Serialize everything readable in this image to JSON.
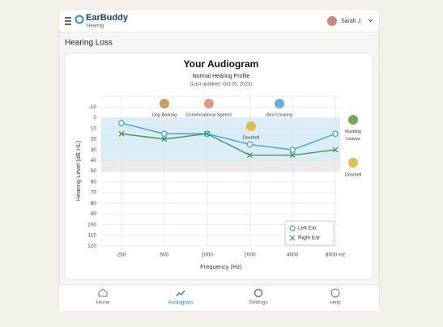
{
  "app": {
    "name": "EarBuddy",
    "subtitle": "Hearing",
    "user": "Sarah J."
  },
  "page": {
    "title": "Hearing Loss"
  },
  "chart_data": {
    "type": "line",
    "title": "Your Audiogram",
    "subtitle": "Normal Hearing Profile",
    "note": "(Last updated: Oct 26, 2023)",
    "x_label": "Frequency (Hz)",
    "y_label": "Hearing Level (dB HL)",
    "categories": [
      "250",
      "500",
      "1000",
      "2000",
      "4000",
      "8000 Hz"
    ],
    "ylim": [
      -20,
      120
    ],
    "yticks": [
      -10,
      0,
      10,
      20,
      30,
      40,
      50,
      60,
      70,
      80,
      90,
      100,
      110,
      120
    ],
    "inverted": true,
    "grid": true,
    "bands": [
      {
        "from": 0,
        "to": 40,
        "color": "#dbeef8"
      },
      {
        "from": 40,
        "to": 50,
        "color": "#ececec"
      }
    ],
    "series": [
      {
        "name": "Left Ear",
        "color": "#3aa6dc",
        "marker": "circle",
        "values": [
          5,
          15,
          15,
          25,
          30,
          15
        ]
      },
      {
        "name": "Right Ear",
        "color": "#3f9c55",
        "marker": "x",
        "values": [
          15,
          20,
          15,
          35,
          35,
          30
        ]
      }
    ],
    "annotations": [
      {
        "label": "Dog Barking"
      },
      {
        "label": "Conversational Speech"
      },
      {
        "label": "Bird Chirping"
      },
      {
        "label": "Doorbell"
      },
      {
        "label": "Rustling Leaves"
      },
      {
        "label": "Doorbell"
      }
    ],
    "legend": "bottom-right"
  },
  "nav": {
    "items": [
      "Home",
      "Audiogram",
      "Settings",
      "Help"
    ],
    "active": 1
  }
}
